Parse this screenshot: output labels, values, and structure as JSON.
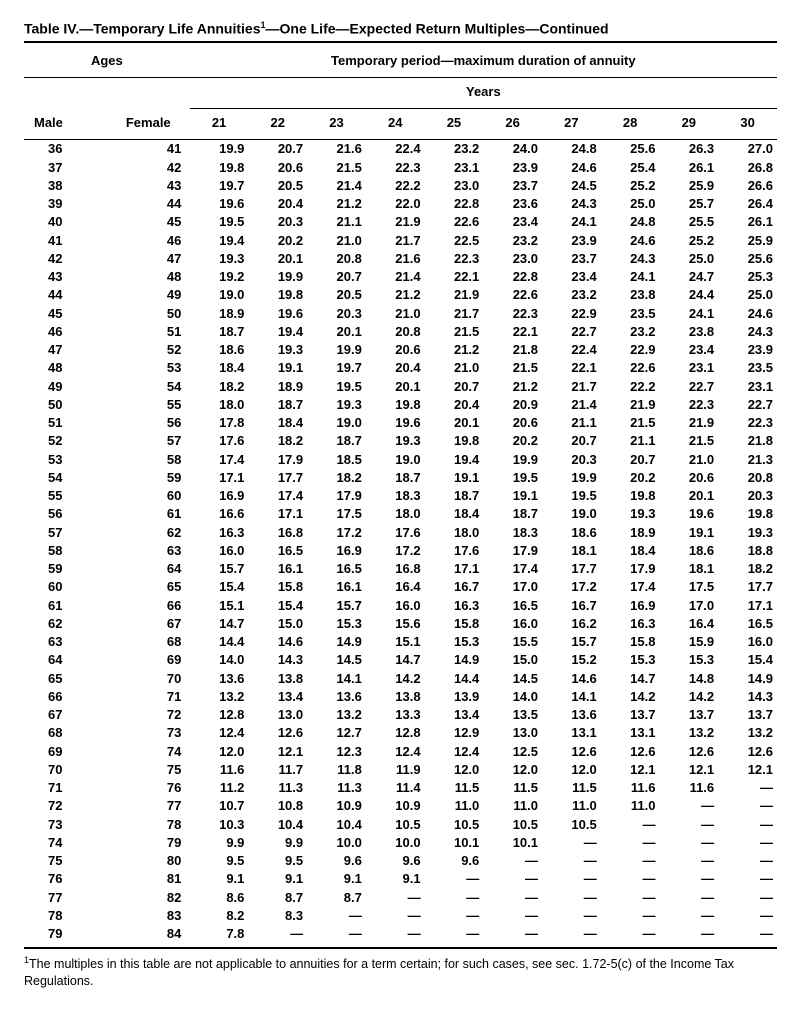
{
  "title_prefix": "Table IV.—Temporary Life Annuities",
  "title_super": "1",
  "title_suffix": "—One Life—Expected Return Multiples—Continued",
  "header": {
    "ages": "Ages",
    "period": "Temporary period—maximum duration of annuity",
    "years": "Years",
    "male": "Male",
    "female": "Female"
  },
  "year_cols": [
    "21",
    "22",
    "23",
    "24",
    "25",
    "26",
    "27",
    "28",
    "29",
    "30"
  ],
  "rows": [
    {
      "m": "36",
      "f": "41",
      "v": [
        "19.9",
        "20.7",
        "21.6",
        "22.4",
        "23.2",
        "24.0",
        "24.8",
        "25.6",
        "26.3",
        "27.0"
      ]
    },
    {
      "m": "37",
      "f": "42",
      "v": [
        "19.8",
        "20.6",
        "21.5",
        "22.3",
        "23.1",
        "23.9",
        "24.6",
        "25.4",
        "26.1",
        "26.8"
      ]
    },
    {
      "m": "38",
      "f": "43",
      "v": [
        "19.7",
        "20.5",
        "21.4",
        "22.2",
        "23.0",
        "23.7",
        "24.5",
        "25.2",
        "25.9",
        "26.6"
      ]
    },
    {
      "m": "39",
      "f": "44",
      "v": [
        "19.6",
        "20.4",
        "21.2",
        "22.0",
        "22.8",
        "23.6",
        "24.3",
        "25.0",
        "25.7",
        "26.4"
      ]
    },
    {
      "m": "40",
      "f": "45",
      "v": [
        "19.5",
        "20.3",
        "21.1",
        "21.9",
        "22.6",
        "23.4",
        "24.1",
        "24.8",
        "25.5",
        "26.1"
      ]
    },
    {
      "m": "41",
      "f": "46",
      "v": [
        "19.4",
        "20.2",
        "21.0",
        "21.7",
        "22.5",
        "23.2",
        "23.9",
        "24.6",
        "25.2",
        "25.9"
      ]
    },
    {
      "m": "42",
      "f": "47",
      "v": [
        "19.3",
        "20.1",
        "20.8",
        "21.6",
        "22.3",
        "23.0",
        "23.7",
        "24.3",
        "25.0",
        "25.6"
      ]
    },
    {
      "m": "43",
      "f": "48",
      "v": [
        "19.2",
        "19.9",
        "20.7",
        "21.4",
        "22.1",
        "22.8",
        "23.4",
        "24.1",
        "24.7",
        "25.3"
      ]
    },
    {
      "m": "44",
      "f": "49",
      "v": [
        "19.0",
        "19.8",
        "20.5",
        "21.2",
        "21.9",
        "22.6",
        "23.2",
        "23.8",
        "24.4",
        "25.0"
      ]
    },
    {
      "m": "45",
      "f": "50",
      "v": [
        "18.9",
        "19.6",
        "20.3",
        "21.0",
        "21.7",
        "22.3",
        "22.9",
        "23.5",
        "24.1",
        "24.6"
      ]
    },
    {
      "m": "46",
      "f": "51",
      "v": [
        "18.7",
        "19.4",
        "20.1",
        "20.8",
        "21.5",
        "22.1",
        "22.7",
        "23.2",
        "23.8",
        "24.3"
      ]
    },
    {
      "m": "47",
      "f": "52",
      "v": [
        "18.6",
        "19.3",
        "19.9",
        "20.6",
        "21.2",
        "21.8",
        "22.4",
        "22.9",
        "23.4",
        "23.9"
      ]
    },
    {
      "m": "48",
      "f": "53",
      "v": [
        "18.4",
        "19.1",
        "19.7",
        "20.4",
        "21.0",
        "21.5",
        "22.1",
        "22.6",
        "23.1",
        "23.5"
      ]
    },
    {
      "m": "49",
      "f": "54",
      "v": [
        "18.2",
        "18.9",
        "19.5",
        "20.1",
        "20.7",
        "21.2",
        "21.7",
        "22.2",
        "22.7",
        "23.1"
      ]
    },
    {
      "m": "50",
      "f": "55",
      "v": [
        "18.0",
        "18.7",
        "19.3",
        "19.8",
        "20.4",
        "20.9",
        "21.4",
        "21.9",
        "22.3",
        "22.7"
      ]
    },
    {
      "m": "51",
      "f": "56",
      "v": [
        "17.8",
        "18.4",
        "19.0",
        "19.6",
        "20.1",
        "20.6",
        "21.1",
        "21.5",
        "21.9",
        "22.3"
      ]
    },
    {
      "m": "52",
      "f": "57",
      "v": [
        "17.6",
        "18.2",
        "18.7",
        "19.3",
        "19.8",
        "20.2",
        "20.7",
        "21.1",
        "21.5",
        "21.8"
      ]
    },
    {
      "m": "53",
      "f": "58",
      "v": [
        "17.4",
        "17.9",
        "18.5",
        "19.0",
        "19.4",
        "19.9",
        "20.3",
        "20.7",
        "21.0",
        "21.3"
      ]
    },
    {
      "m": "54",
      "f": "59",
      "v": [
        "17.1",
        "17.7",
        "18.2",
        "18.7",
        "19.1",
        "19.5",
        "19.9",
        "20.2",
        "20.6",
        "20.8"
      ]
    },
    {
      "m": "55",
      "f": "60",
      "v": [
        "16.9",
        "17.4",
        "17.9",
        "18.3",
        "18.7",
        "19.1",
        "19.5",
        "19.8",
        "20.1",
        "20.3"
      ]
    },
    {
      "m": "56",
      "f": "61",
      "v": [
        "16.6",
        "17.1",
        "17.5",
        "18.0",
        "18.4",
        "18.7",
        "19.0",
        "19.3",
        "19.6",
        "19.8"
      ]
    },
    {
      "m": "57",
      "f": "62",
      "v": [
        "16.3",
        "16.8",
        "17.2",
        "17.6",
        "18.0",
        "18.3",
        "18.6",
        "18.9",
        "19.1",
        "19.3"
      ]
    },
    {
      "m": "58",
      "f": "63",
      "v": [
        "16.0",
        "16.5",
        "16.9",
        "17.2",
        "17.6",
        "17.9",
        "18.1",
        "18.4",
        "18.6",
        "18.8"
      ]
    },
    {
      "m": "59",
      "f": "64",
      "v": [
        "15.7",
        "16.1",
        "16.5",
        "16.8",
        "17.1",
        "17.4",
        "17.7",
        "17.9",
        "18.1",
        "18.2"
      ]
    },
    {
      "m": "60",
      "f": "65",
      "v": [
        "15.4",
        "15.8",
        "16.1",
        "16.4",
        "16.7",
        "17.0",
        "17.2",
        "17.4",
        "17.5",
        "17.7"
      ]
    },
    {
      "m": "61",
      "f": "66",
      "v": [
        "15.1",
        "15.4",
        "15.7",
        "16.0",
        "16.3",
        "16.5",
        "16.7",
        "16.9",
        "17.0",
        "17.1"
      ]
    },
    {
      "m": "62",
      "f": "67",
      "v": [
        "14.7",
        "15.0",
        "15.3",
        "15.6",
        "15.8",
        "16.0",
        "16.2",
        "16.3",
        "16.4",
        "16.5"
      ]
    },
    {
      "m": "63",
      "f": "68",
      "v": [
        "14.4",
        "14.6",
        "14.9",
        "15.1",
        "15.3",
        "15.5",
        "15.7",
        "15.8",
        "15.9",
        "16.0"
      ]
    },
    {
      "m": "64",
      "f": "69",
      "v": [
        "14.0",
        "14.3",
        "14.5",
        "14.7",
        "14.9",
        "15.0",
        "15.2",
        "15.3",
        "15.3",
        "15.4"
      ]
    },
    {
      "m": "65",
      "f": "70",
      "v": [
        "13.6",
        "13.8",
        "14.1",
        "14.2",
        "14.4",
        "14.5",
        "14.6",
        "14.7",
        "14.8",
        "14.9"
      ]
    },
    {
      "m": "66",
      "f": "71",
      "v": [
        "13.2",
        "13.4",
        "13.6",
        "13.8",
        "13.9",
        "14.0",
        "14.1",
        "14.2",
        "14.2",
        "14.3"
      ]
    },
    {
      "m": "67",
      "f": "72",
      "v": [
        "12.8",
        "13.0",
        "13.2",
        "13.3",
        "13.4",
        "13.5",
        "13.6",
        "13.7",
        "13.7",
        "13.7"
      ]
    },
    {
      "m": "68",
      "f": "73",
      "v": [
        "12.4",
        "12.6",
        "12.7",
        "12.8",
        "12.9",
        "13.0",
        "13.1",
        "13.1",
        "13.2",
        "13.2"
      ]
    },
    {
      "m": "69",
      "f": "74",
      "v": [
        "12.0",
        "12.1",
        "12.3",
        "12.4",
        "12.4",
        "12.5",
        "12.6",
        "12.6",
        "12.6",
        "12.6"
      ]
    },
    {
      "m": "70",
      "f": "75",
      "v": [
        "11.6",
        "11.7",
        "11.8",
        "11.9",
        "12.0",
        "12.0",
        "12.0",
        "12.1",
        "12.1",
        "12.1"
      ]
    },
    {
      "m": "71",
      "f": "76",
      "v": [
        "11.2",
        "11.3",
        "11.3",
        "11.4",
        "11.5",
        "11.5",
        "11.5",
        "11.6",
        "11.6",
        "—"
      ]
    },
    {
      "m": "72",
      "f": "77",
      "v": [
        "10.7",
        "10.8",
        "10.9",
        "10.9",
        "11.0",
        "11.0",
        "11.0",
        "11.0",
        "—",
        "—"
      ]
    },
    {
      "m": "73",
      "f": "78",
      "v": [
        "10.3",
        "10.4",
        "10.4",
        "10.5",
        "10.5",
        "10.5",
        "10.5",
        "—",
        "—",
        "—"
      ]
    },
    {
      "m": "74",
      "f": "79",
      "v": [
        "9.9",
        "9.9",
        "10.0",
        "10.0",
        "10.1",
        "10.1",
        "—",
        "—",
        "—",
        "—"
      ]
    },
    {
      "m": "75",
      "f": "80",
      "v": [
        "9.5",
        "9.5",
        "9.6",
        "9.6",
        "9.6",
        "—",
        "—",
        "—",
        "—",
        "—"
      ]
    },
    {
      "m": "76",
      "f": "81",
      "v": [
        "9.1",
        "9.1",
        "9.1",
        "9.1",
        "—",
        "—",
        "—",
        "—",
        "—",
        "—"
      ]
    },
    {
      "m": "77",
      "f": "82",
      "v": [
        "8.6",
        "8.7",
        "8.7",
        "—",
        "—",
        "—",
        "—",
        "—",
        "—",
        "—"
      ]
    },
    {
      "m": "78",
      "f": "83",
      "v": [
        "8.2",
        "8.3",
        "—",
        "—",
        "—",
        "—",
        "—",
        "—",
        "—",
        "—"
      ]
    },
    {
      "m": "79",
      "f": "84",
      "v": [
        "7.8",
        "—",
        "—",
        "—",
        "—",
        "—",
        "—",
        "—",
        "—",
        "—"
      ]
    }
  ],
  "footnote_super": "1",
  "footnote": "The multiples in this table are not applicable to annuities for a term certain; for such cases, see sec. 1.72-5(c) of the Income Tax Regulations."
}
